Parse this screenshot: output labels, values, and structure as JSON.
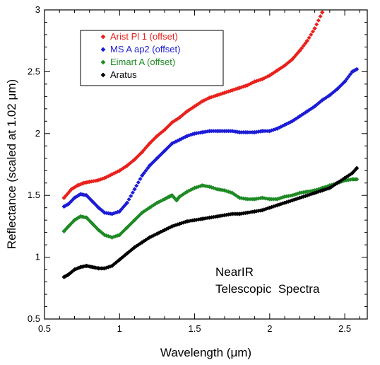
{
  "chart_data": {
    "type": "scatter",
    "title": "",
    "xlabel": "Wavelength (μm)",
    "ylabel": "Reflectance (scaled at 1.02 μm)",
    "xlim": [
      0.5,
      2.65
    ],
    "ylim": [
      0.5,
      3.0
    ],
    "x_ticks": [
      0.5,
      1,
      1.5,
      2,
      2.5
    ],
    "x_tick_labels": [
      "0.5",
      "1",
      "1.5",
      "2",
      "2.5"
    ],
    "y_ticks": [
      0.5,
      1,
      1.5,
      2,
      2.5,
      3
    ],
    "y_tick_labels": [
      "0.5",
      "1",
      "1.5",
      "2",
      "2.5",
      "3"
    ],
    "grid": false,
    "legend": {
      "placement": "top-left",
      "boxed": true
    },
    "annotations": [
      "NearIR",
      "Telescopic  Spectra"
    ],
    "series": [
      {
        "name": "Arist Pl 1 (offset)",
        "color": "#e8211c",
        "points": [
          [
            0.63,
            1.48
          ],
          [
            0.68,
            1.55
          ],
          [
            0.72,
            1.58
          ],
          [
            0.76,
            1.6
          ],
          [
            0.8,
            1.61
          ],
          [
            0.85,
            1.62
          ],
          [
            0.9,
            1.64
          ],
          [
            0.95,
            1.67
          ],
          [
            1.0,
            1.7
          ],
          [
            1.05,
            1.74
          ],
          [
            1.1,
            1.79
          ],
          [
            1.15,
            1.85
          ],
          [
            1.2,
            1.92
          ],
          [
            1.25,
            1.98
          ],
          [
            1.3,
            2.03
          ],
          [
            1.35,
            2.09
          ],
          [
            1.4,
            2.13
          ],
          [
            1.45,
            2.18
          ],
          [
            1.5,
            2.22
          ],
          [
            1.55,
            2.26
          ],
          [
            1.6,
            2.29
          ],
          [
            1.65,
            2.31
          ],
          [
            1.7,
            2.33
          ],
          [
            1.75,
            2.35
          ],
          [
            1.8,
            2.37
          ],
          [
            1.85,
            2.39
          ],
          [
            1.9,
            2.42
          ],
          [
            1.95,
            2.44
          ],
          [
            2.0,
            2.47
          ],
          [
            2.05,
            2.51
          ],
          [
            2.1,
            2.55
          ],
          [
            2.15,
            2.6
          ],
          [
            2.2,
            2.67
          ],
          [
            2.25,
            2.75
          ],
          [
            2.3,
            2.85
          ],
          [
            2.35,
            2.98
          ]
        ]
      },
      {
        "name": "MS A ap2 (offset)",
        "color": "#1c1cd6",
        "points": [
          [
            0.63,
            1.41
          ],
          [
            0.66,
            1.43
          ],
          [
            0.7,
            1.48
          ],
          [
            0.74,
            1.51
          ],
          [
            0.78,
            1.5
          ],
          [
            0.82,
            1.45
          ],
          [
            0.86,
            1.4
          ],
          [
            0.9,
            1.36
          ],
          [
            0.95,
            1.35
          ],
          [
            1.0,
            1.37
          ],
          [
            1.05,
            1.44
          ],
          [
            1.1,
            1.55
          ],
          [
            1.15,
            1.66
          ],
          [
            1.2,
            1.74
          ],
          [
            1.25,
            1.8
          ],
          [
            1.3,
            1.86
          ],
          [
            1.35,
            1.92
          ],
          [
            1.4,
            1.95
          ],
          [
            1.45,
            1.98
          ],
          [
            1.5,
            2.0
          ],
          [
            1.55,
            2.01
          ],
          [
            1.6,
            2.02
          ],
          [
            1.65,
            2.02
          ],
          [
            1.7,
            2.02
          ],
          [
            1.75,
            2.02
          ],
          [
            1.8,
            2.01
          ],
          [
            1.85,
            2.01
          ],
          [
            1.9,
            2.01
          ],
          [
            1.95,
            2.02
          ],
          [
            2.0,
            2.02
          ],
          [
            2.05,
            2.04
          ],
          [
            2.1,
            2.07
          ],
          [
            2.15,
            2.1
          ],
          [
            2.2,
            2.14
          ],
          [
            2.25,
            2.18
          ],
          [
            2.3,
            2.22
          ],
          [
            2.35,
            2.27
          ],
          [
            2.4,
            2.31
          ],
          [
            2.45,
            2.36
          ],
          [
            2.5,
            2.42
          ],
          [
            2.55,
            2.5
          ],
          [
            2.58,
            2.52
          ]
        ]
      },
      {
        "name": "Eimart A (offset)",
        "color": "#1e8a24",
        "points": [
          [
            0.63,
            1.21
          ],
          [
            0.66,
            1.25
          ],
          [
            0.7,
            1.3
          ],
          [
            0.74,
            1.33
          ],
          [
            0.78,
            1.32
          ],
          [
            0.82,
            1.27
          ],
          [
            0.86,
            1.22
          ],
          [
            0.9,
            1.18
          ],
          [
            0.95,
            1.16
          ],
          [
            1.0,
            1.18
          ],
          [
            1.05,
            1.24
          ],
          [
            1.1,
            1.3
          ],
          [
            1.15,
            1.36
          ],
          [
            1.2,
            1.4
          ],
          [
            1.25,
            1.44
          ],
          [
            1.3,
            1.47
          ],
          [
            1.33,
            1.49
          ],
          [
            1.35,
            1.5
          ],
          [
            1.38,
            1.46
          ],
          [
            1.4,
            1.49
          ],
          [
            1.45,
            1.53
          ],
          [
            1.5,
            1.56
          ],
          [
            1.55,
            1.58
          ],
          [
            1.6,
            1.57
          ],
          [
            1.65,
            1.55
          ],
          [
            1.7,
            1.54
          ],
          [
            1.75,
            1.52
          ],
          [
            1.8,
            1.48
          ],
          [
            1.85,
            1.47
          ],
          [
            1.9,
            1.47
          ],
          [
            1.95,
            1.48
          ],
          [
            2.0,
            1.47
          ],
          [
            2.05,
            1.47
          ],
          [
            2.1,
            1.49
          ],
          [
            2.15,
            1.5
          ],
          [
            2.2,
            1.52
          ],
          [
            2.25,
            1.53
          ],
          [
            2.3,
            1.54
          ],
          [
            2.35,
            1.56
          ],
          [
            2.4,
            1.58
          ],
          [
            2.45,
            1.6
          ],
          [
            2.5,
            1.62
          ],
          [
            2.55,
            1.63
          ],
          [
            2.58,
            1.63
          ]
        ]
      },
      {
        "name": "Aratus",
        "color": "#000000",
        "points": [
          [
            0.63,
            0.84
          ],
          [
            0.66,
            0.86
          ],
          [
            0.7,
            0.9
          ],
          [
            0.74,
            0.92
          ],
          [
            0.78,
            0.93
          ],
          [
            0.82,
            0.92
          ],
          [
            0.86,
            0.91
          ],
          [
            0.9,
            0.91
          ],
          [
            0.95,
            0.93
          ],
          [
            1.0,
            0.98
          ],
          [
            1.05,
            1.03
          ],
          [
            1.1,
            1.08
          ],
          [
            1.15,
            1.12
          ],
          [
            1.2,
            1.16
          ],
          [
            1.25,
            1.19
          ],
          [
            1.3,
            1.22
          ],
          [
            1.35,
            1.25
          ],
          [
            1.4,
            1.27
          ],
          [
            1.45,
            1.29
          ],
          [
            1.5,
            1.3
          ],
          [
            1.55,
            1.31
          ],
          [
            1.6,
            1.32
          ],
          [
            1.65,
            1.33
          ],
          [
            1.7,
            1.34
          ],
          [
            1.75,
            1.35
          ],
          [
            1.8,
            1.35
          ],
          [
            1.85,
            1.36
          ],
          [
            1.9,
            1.37
          ],
          [
            1.95,
            1.38
          ],
          [
            2.0,
            1.4
          ],
          [
            2.05,
            1.42
          ],
          [
            2.1,
            1.44
          ],
          [
            2.15,
            1.46
          ],
          [
            2.2,
            1.48
          ],
          [
            2.25,
            1.5
          ],
          [
            2.3,
            1.52
          ],
          [
            2.35,
            1.54
          ],
          [
            2.4,
            1.56
          ],
          [
            2.45,
            1.6
          ],
          [
            2.5,
            1.64
          ],
          [
            2.55,
            1.68
          ],
          [
            2.58,
            1.72
          ]
        ]
      }
    ]
  }
}
